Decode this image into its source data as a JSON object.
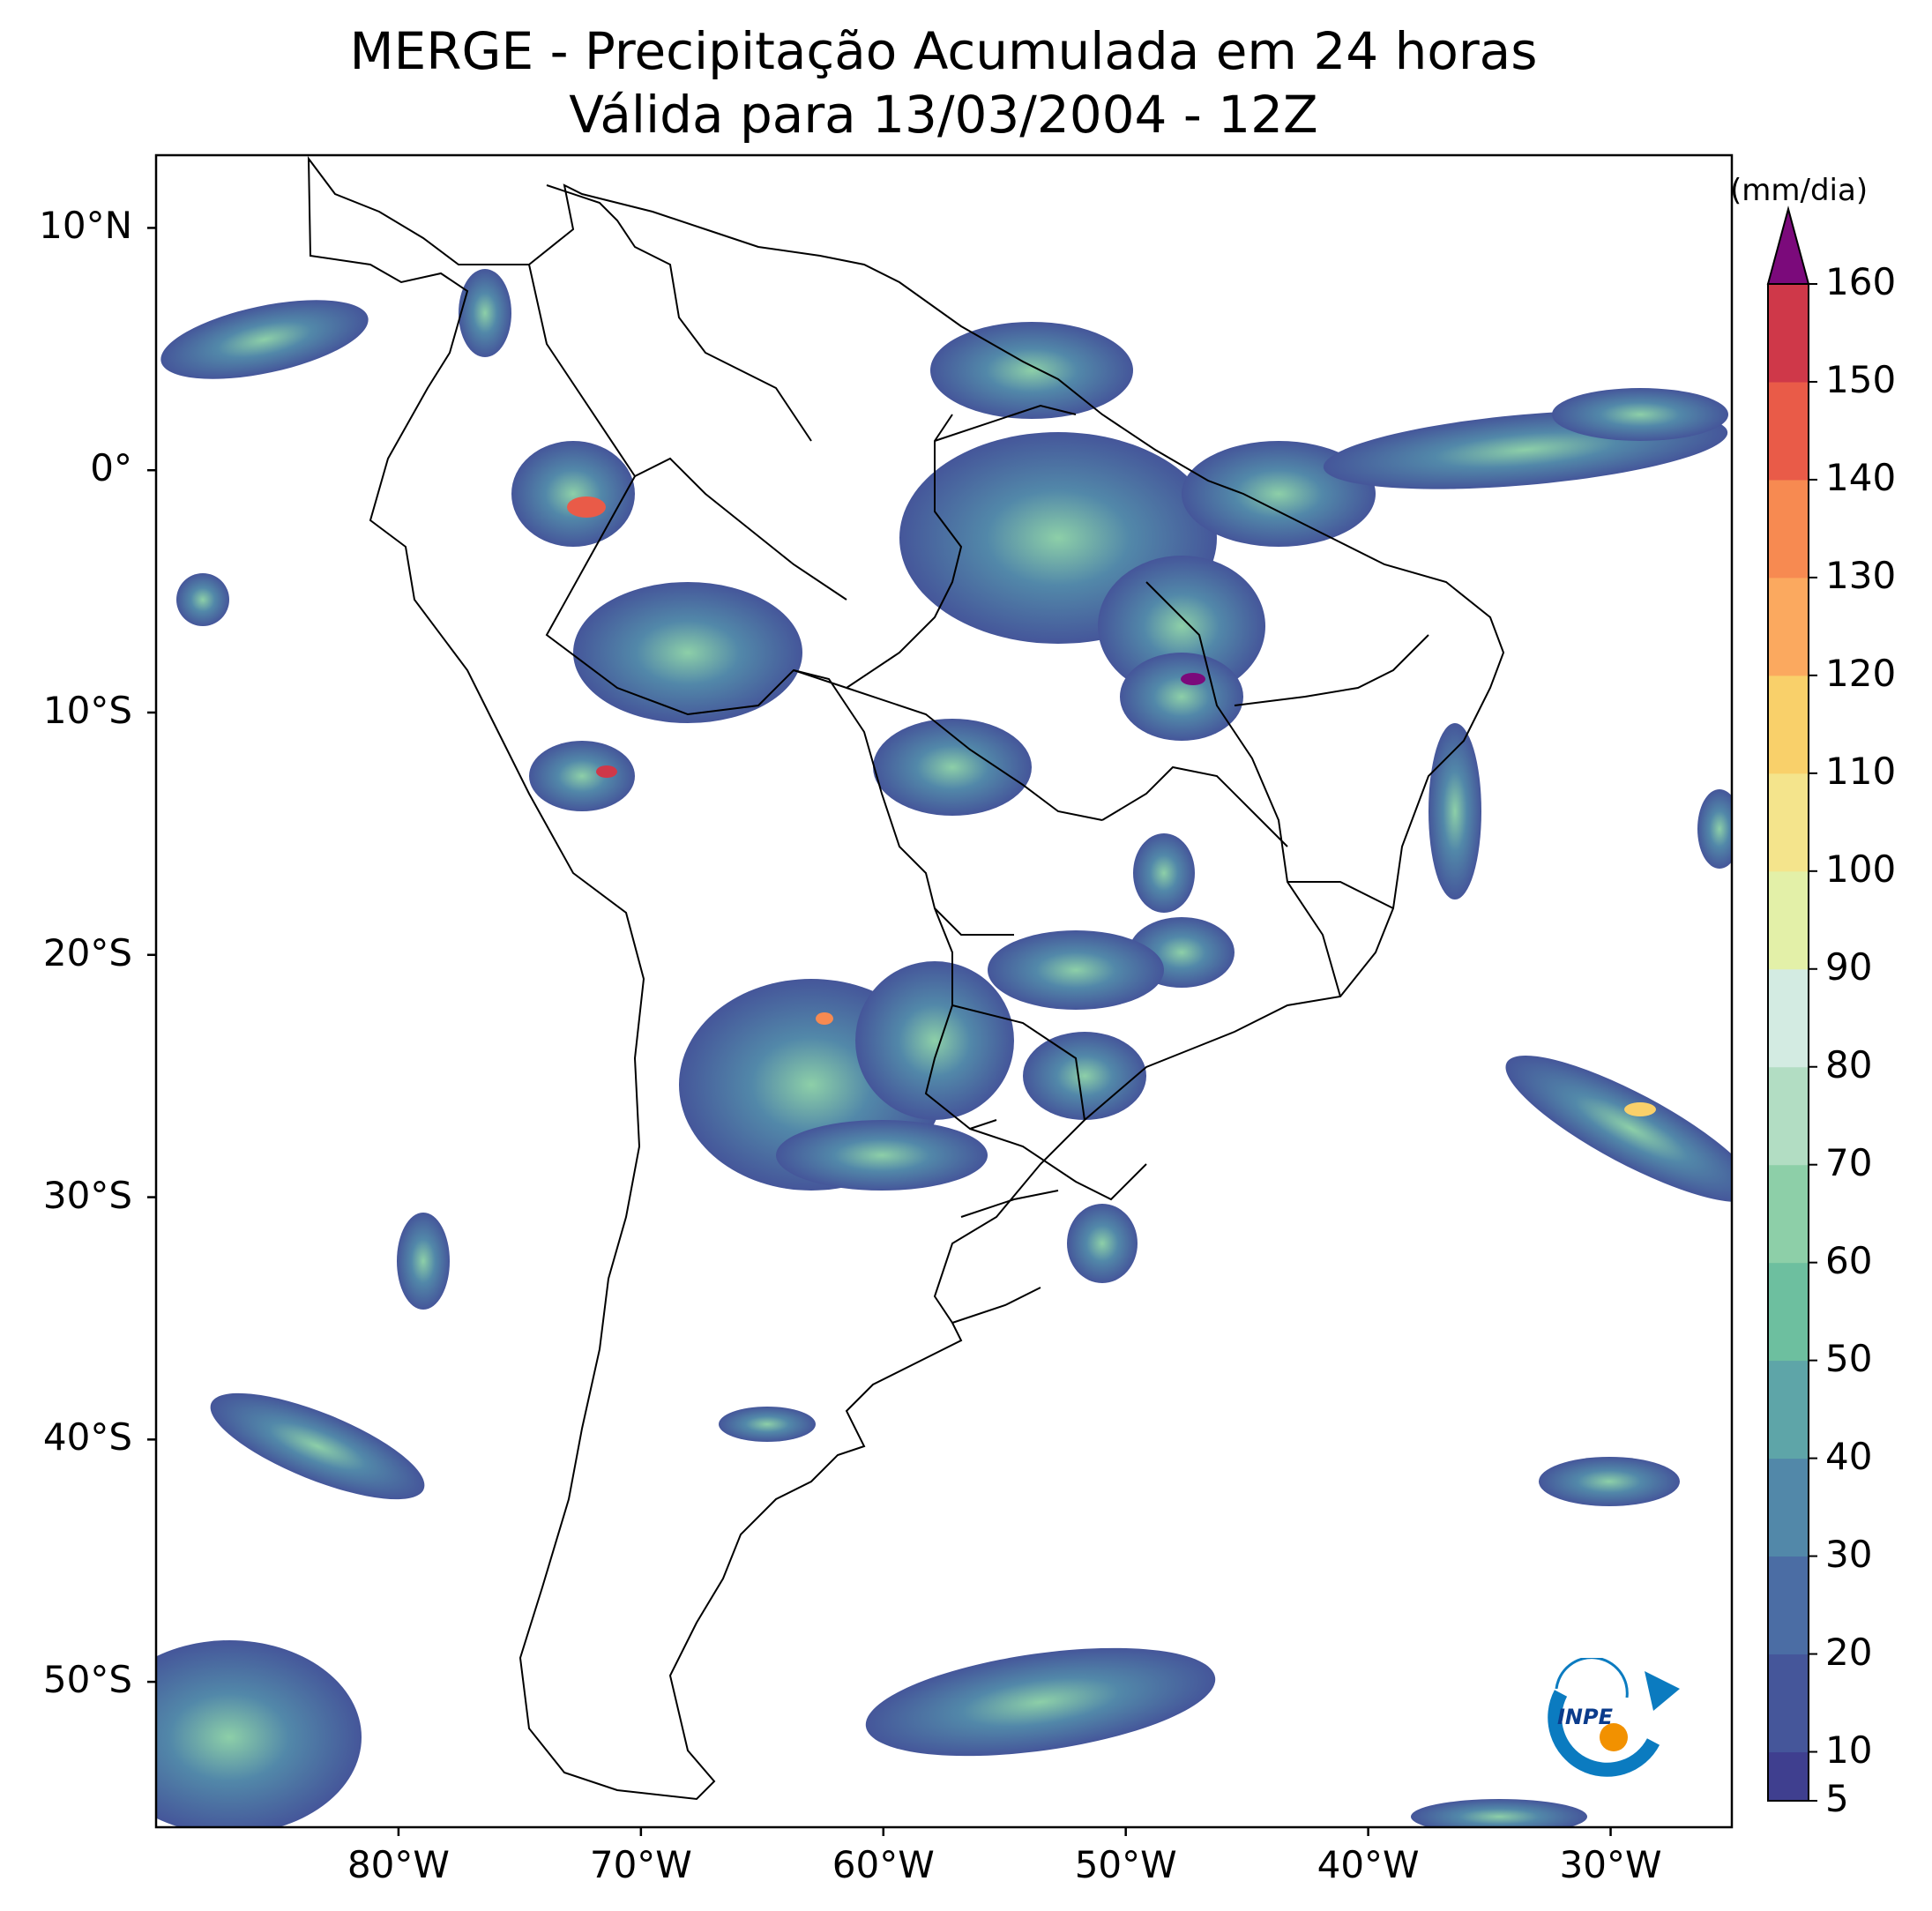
{
  "title_line1": "MERGE - Precipitação Acumulada em 24 horas",
  "title_line2": "Válida para 13/03/2004 - 12Z",
  "map": {
    "lon_range": [
      -90,
      -25
    ],
    "lat_range": [
      -56,
      13
    ],
    "lat_ticks": [
      {
        "value": 10,
        "label": "10°N"
      },
      {
        "value": 0,
        "label": "0°"
      },
      {
        "value": -10,
        "label": "10°S"
      },
      {
        "value": -20,
        "label": "20°S"
      },
      {
        "value": -30,
        "label": "30°S"
      },
      {
        "value": -40,
        "label": "40°S"
      },
      {
        "value": -50,
        "label": "50°S"
      }
    ],
    "lon_ticks": [
      {
        "value": -80,
        "label": "80°W"
      },
      {
        "value": -70,
        "label": "70°W"
      },
      {
        "value": -60,
        "label": "60°W"
      },
      {
        "value": -50,
        "label": "50°W"
      },
      {
        "value": -40,
        "label": "40°W"
      },
      {
        "value": -30,
        "label": "30°W"
      }
    ]
  },
  "colorbar": {
    "units": "(mm/dia)",
    "range": [
      5,
      160
    ],
    "extend": "max",
    "labels": [
      5,
      10,
      20,
      30,
      40,
      50,
      60,
      70,
      80,
      90,
      100,
      110,
      120,
      130,
      140,
      150,
      160
    ],
    "colors": [
      "#3f3f8f",
      "#45569a",
      "#4b6da4",
      "#5288a9",
      "#5ea5a8",
      "#6dbf9f",
      "#8dcfa8",
      "#b2ddc3",
      "#d3ebe2",
      "#e3f0a8",
      "#f4e48c",
      "#f9d06a",
      "#fba95f",
      "#f78a51",
      "#e95b48",
      "#cf3849",
      "#a8184b",
      "#7b0a7b"
    ],
    "extend_color": "#7b0a7b"
  },
  "logo": {
    "text": "INPE"
  }
}
